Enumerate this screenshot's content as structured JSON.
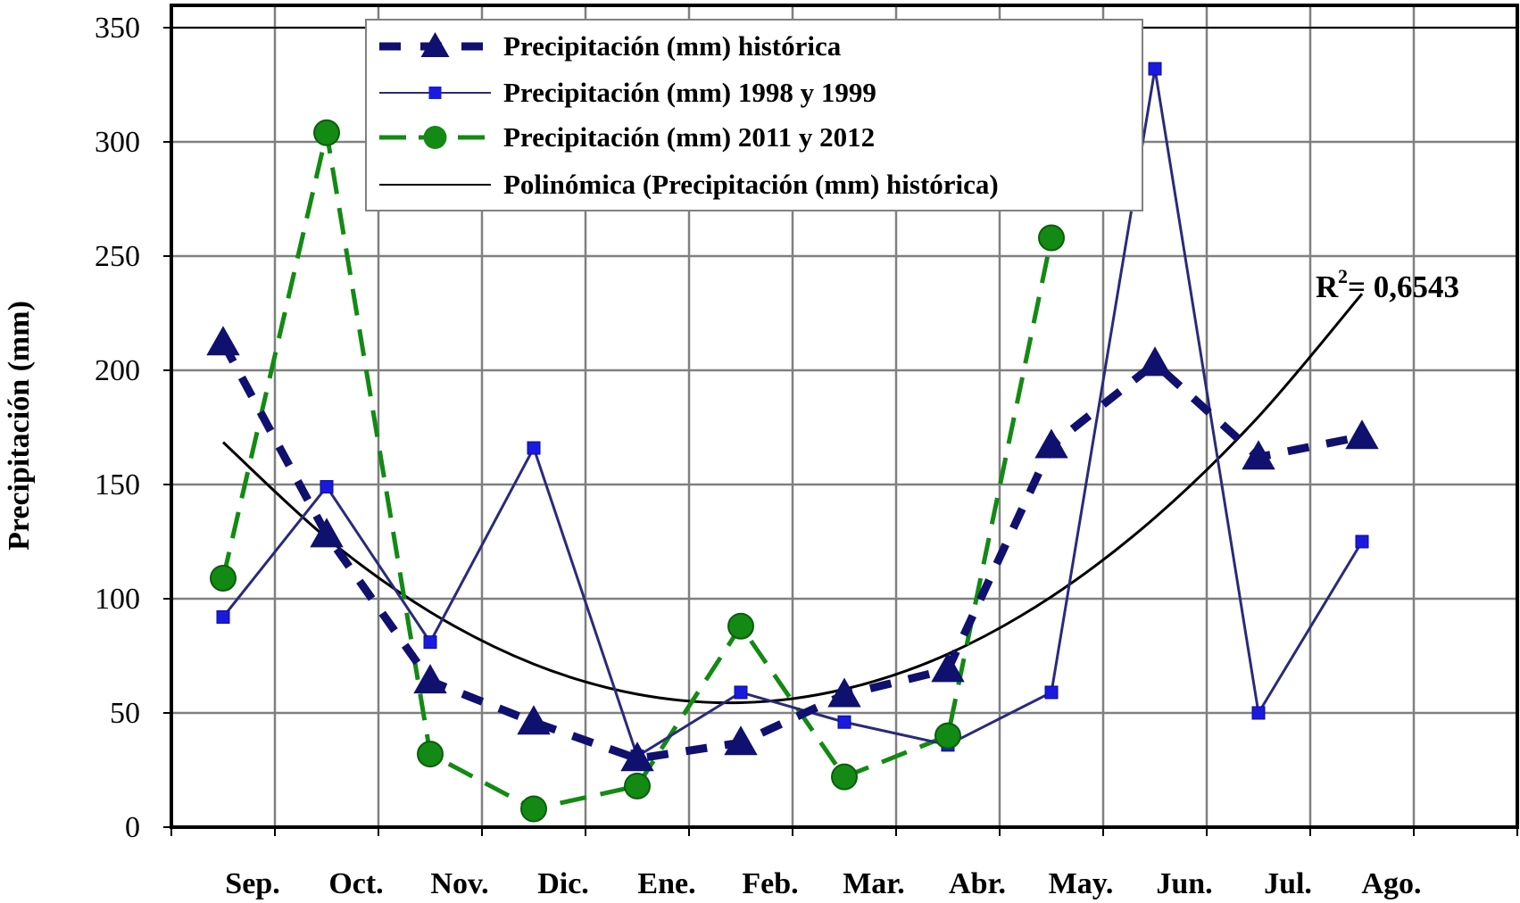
{
  "chart_data": {
    "type": "line",
    "title": "",
    "xlabel": "",
    "ylabel": "Precipitación (mm)",
    "ylim": [
      0,
      350
    ],
    "yticks": [
      0,
      50,
      100,
      150,
      200,
      250,
      300,
      350
    ],
    "grid": true,
    "legend_position": "top-center",
    "categories": [
      "Sep.",
      "Oct.",
      "Nov.",
      "Dic.",
      "Ene.",
      "Feb.",
      "Mar.",
      "Abr.",
      "May.",
      "Jun.",
      "Jul.",
      "Ago."
    ],
    "series": [
      {
        "name": "Precipitación (mm) histórica",
        "style": "dashed",
        "marker": "triangle",
        "color": "#10106e",
        "values": [
          212,
          128,
          64,
          46,
          30,
          37,
          58,
          69,
          167,
          203,
          162,
          171
        ]
      },
      {
        "name": "Precipitación (mm) 1998 y 1999",
        "style": "solid",
        "marker": "square",
        "color": "#2a2a7a",
        "marker_color": "#1a1adf",
        "values": [
          92,
          149,
          81,
          166,
          31,
          59,
          46,
          36,
          59,
          332,
          50,
          125
        ]
      },
      {
        "name": "Precipitación (mm) 2011 y 2012",
        "style": "long-dash",
        "marker": "circle",
        "color": "#138a13",
        "values": [
          109,
          304,
          32,
          8,
          18,
          88,
          22,
          40,
          258,
          null,
          null,
          null
        ]
      },
      {
        "name": "Polinómica (Precipitación (mm) histórica)",
        "style": "trendline",
        "marker": "none",
        "color": "#000000",
        "values": [
          168.5,
          126.6,
          94.2,
          71.4,
          58.2,
          54.5,
          60.4,
          75.8,
          100.9,
          135.5,
          179.7,
          233.5
        ]
      }
    ],
    "annotations": [
      {
        "text_main": "R",
        "text_sup": "2",
        "text_rest": " = 0,6543"
      }
    ]
  },
  "colors": {
    "grid": "#808080",
    "axis": "#000000",
    "legend_border": "#808080"
  }
}
